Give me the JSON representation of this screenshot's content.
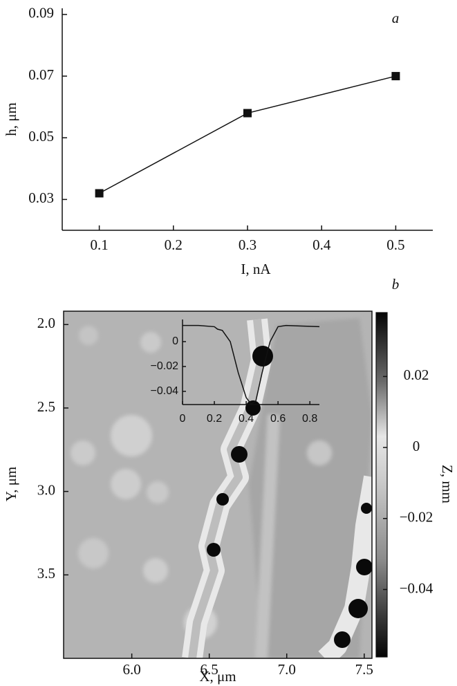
{
  "chart_data": [
    {
      "type": "line",
      "label": "a",
      "xlabel": "I, nA",
      "ylabel": "h, μm",
      "x": [
        0.1,
        0.3,
        0.5
      ],
      "values": [
        0.032,
        0.058,
        0.07
      ],
      "color": "#111111",
      "marker": "square",
      "xlim": [
        0.05,
        0.55
      ],
      "ylim": [
        0.02,
        0.092
      ],
      "xticks": [
        0.1,
        0.2,
        0.3,
        0.4,
        0.5
      ],
      "yticks": [
        0.03,
        0.05,
        0.07,
        0.09
      ]
    },
    {
      "type": "image",
      "label": "b",
      "xlabel": "X, μm",
      "ylabel": "Y, μm",
      "xlim": [
        5.56,
        7.55
      ],
      "ylim": [
        1.92,
        4.0
      ],
      "invert_y": true,
      "xticks": [
        {
          "value": 6,
          "label": "6.0"
        },
        {
          "value": 6.5,
          "label": "6.5"
        },
        {
          "value": 7,
          "label": "7.0"
        },
        {
          "value": 7.5,
          "label": "7.5"
        }
      ],
      "yticks": [
        {
          "value": 2,
          "label": "2.0"
        },
        {
          "value": 2.5,
          "label": "2.5"
        },
        {
          "value": 3,
          "label": "3.0"
        },
        {
          "value": 3.5,
          "label": "3.5"
        }
      ],
      "colorbar": {
        "label": "Z, mm",
        "lim": [
          -0.059,
          0.038
        ],
        "ticks": [
          0.02,
          0,
          {
            "value": -0.02,
            "label": "−0.02"
          },
          {
            "value": -0.04,
            "label": "−0.04"
          }
        ]
      },
      "inset": {
        "type": "line",
        "color": "#111111",
        "x": [
          0,
          0.1,
          0.2,
          0.22,
          0.25,
          0.3,
          0.35,
          0.4,
          0.43,
          0.46,
          0.5,
          0.55,
          0.6,
          0.65,
          0.75,
          0.86
        ],
        "values": [
          0.013,
          0.013,
          0.012,
          0.01,
          0.009,
          0.0,
          -0.025,
          -0.045,
          -0.05,
          -0.048,
          -0.025,
          0.0,
          0.012,
          0.013,
          0.0125,
          0.012
        ],
        "xlim": [
          0,
          0.86
        ],
        "ylim": [
          -0.0506,
          0.0178
        ],
        "xticks": [
          0,
          0.2,
          0.4,
          0.6,
          0.8
        ],
        "yticks": [
          0,
          {
            "value": -0.02,
            "label": "−0.02"
          },
          {
            "value": -0.04,
            "label": "−0.04"
          }
        ]
      }
    }
  ]
}
